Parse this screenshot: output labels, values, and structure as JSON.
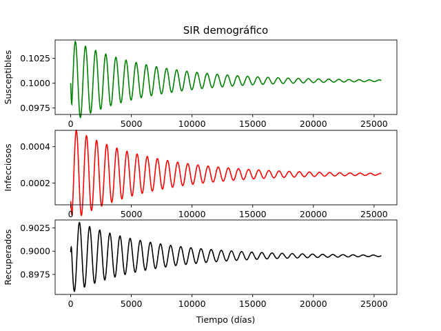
{
  "title": "SIR demográfico",
  "xlabel": "Tiempo (días)",
  "chart_data": [
    {
      "type": "line",
      "ylabel": "Susceptibles",
      "color": "#008000",
      "xlim": [
        -1280,
        26880
      ],
      "ylim": [
        0.09685,
        0.10435
      ],
      "xticks": [
        0,
        5000,
        10000,
        15000,
        20000,
        25000
      ],
      "yticks": [
        0.0975,
        0.1,
        0.1025
      ],
      "ytick_labels": [
        "0.0975",
        "0.1000",
        "0.1025"
      ],
      "series": [
        {
          "x_start": 0,
          "x_end": 25600,
          "equilibrium": 0.10025,
          "start_value": 0.1,
          "amplitude0": 0.0042,
          "decay_per_day": 0.000154,
          "period_days": 835,
          "peaks": [
            [
              390,
              0.10405
            ],
            [
              1200,
              0.1035
            ],
            [
              2000,
              0.103
            ],
            [
              2850,
              0.10265
            ],
            [
              3700,
              0.1024
            ],
            [
              4550,
              0.1022
            ],
            [
              5350,
              0.10205
            ],
            [
              6200,
              0.10195
            ],
            [
              7050,
              0.10185
            ],
            [
              7850,
              0.1017
            ],
            [
              8700,
              0.10155
            ],
            [
              9550,
              0.1014
            ],
            [
              10400,
              0.1013
            ]
          ],
          "troughs": [
            [
              650,
              0.097
            ],
            [
              1500,
              0.0975
            ],
            [
              2300,
              0.0979
            ],
            [
              3150,
              0.0982
            ],
            [
              4000,
              0.0985
            ],
            [
              4800,
              0.0987
            ],
            [
              5650,
              0.0989
            ],
            [
              6500,
              0.099
            ],
            [
              7300,
              0.0992
            ],
            [
              8150,
              0.0994
            ],
            [
              9000,
              0.0995
            ],
            [
              9800,
              0.0996
            ],
            [
              10650,
              0.0997
            ]
          ],
          "end_value": 0.10025
        }
      ]
    },
    {
      "type": "line",
      "ylabel": "Infecciosos",
      "color": "#ff0000",
      "xlim": [
        -1280,
        26880
      ],
      "ylim": [
        8e-05,
        0.00049
      ],
      "xticks": [
        0,
        5000,
        10000,
        15000,
        20000,
        25000
      ],
      "yticks": [
        0.0002,
        0.0004
      ],
      "ytick_labels": [
        "0.0002",
        "0.0004"
      ],
      "series": [
        {
          "x_start": 0,
          "x_end": 25600,
          "equilibrium": 0.000248,
          "start_value": 0.0001,
          "amplitude0": 0.00026,
          "decay_per_day": 0.000154,
          "period_days": 835,
          "peaks": [
            [
              470,
              0.00047
            ],
            [
              1310,
              0.00041
            ],
            [
              2150,
              0.0004
            ],
            [
              3000,
              0.00037
            ],
            [
              3800,
              0.00035
            ],
            [
              4650,
              0.00034
            ],
            [
              5500,
              0.00033
            ],
            [
              6350,
              0.00031
            ]
          ],
          "troughs": [
            [
              900,
              0.00012
            ],
            [
              1750,
              0.00013
            ],
            [
              2600,
              0.00014
            ],
            [
              3400,
              0.00015
            ],
            [
              4250,
              0.00016
            ],
            [
              5100,
              0.00017
            ],
            [
              5900,
              0.00018
            ]
          ],
          "end_value": 0.000248
        }
      ]
    },
    {
      "type": "line",
      "ylabel": "Recuperados",
      "color": "#000000",
      "xlim": [
        -1280,
        26880
      ],
      "ylim": [
        0.89535,
        0.90335
      ],
      "xticks": [
        0,
        5000,
        10000,
        15000,
        20000,
        25000
      ],
      "yticks": [
        0.8975,
        0.9,
        0.9025
      ],
      "ytick_labels": [
        "0.8975",
        "0.9000",
        "0.9025"
      ],
      "series": [
        {
          "x_start": 0,
          "x_end": 25600,
          "equilibrium": 0.8995,
          "start_value": 0.8999,
          "amplitude0": 0.004,
          "decay_per_day": 0.000154,
          "period_days": 835,
          "peaks": [
            [
              650,
              0.9029
            ],
            [
              1500,
              0.9024
            ],
            [
              2300,
              0.902
            ],
            [
              3150,
              0.9017
            ],
            [
              4000,
              0.9014
            ],
            [
              4800,
              0.9012
            ],
            [
              5650,
              0.901
            ]
          ],
          "troughs": [
            [
              300,
              0.8957
            ],
            [
              1150,
              0.8963
            ],
            [
              2000,
              0.8968
            ],
            [
              2850,
              0.8972
            ],
            [
              3650,
              0.8976
            ],
            [
              4500,
              0.8979
            ],
            [
              5300,
              0.8982
            ]
          ],
          "end_value": 0.8995
        }
      ]
    }
  ]
}
